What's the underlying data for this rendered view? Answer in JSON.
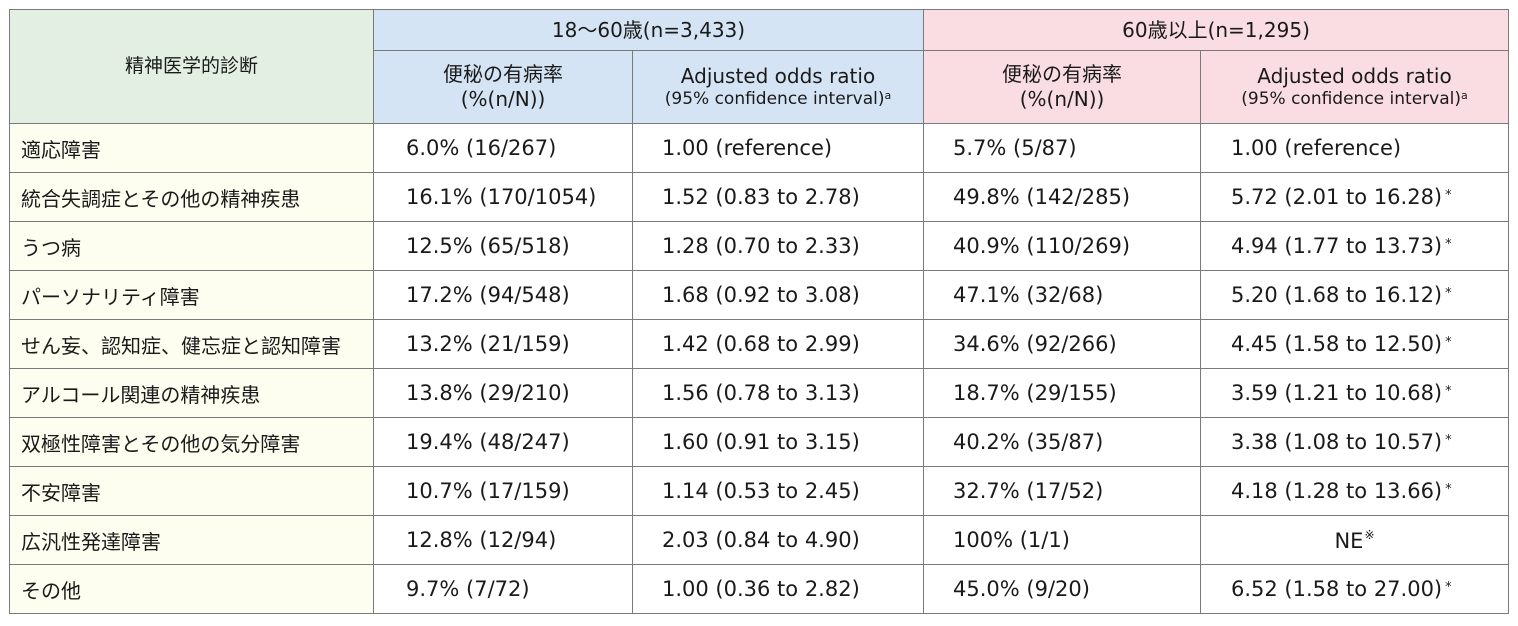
{
  "header": {
    "diagnosis": "精神医学的診断",
    "group_young": "18〜60歳(n=3,433)",
    "group_old": "60歳以上(n=1,295)",
    "prevalence_line1": "便秘の有病率",
    "prevalence_line2": "(%(n/N))",
    "odds_line1": "Adjusted odds ratio",
    "odds_line2": "(95% confidence interval)",
    "odds_sup": "a"
  },
  "rows": [
    {
      "diagnosis": "適応障害",
      "young_prev": "6.0% (16/267)",
      "young_or": "1.00 (reference)",
      "young_star": "",
      "old_prev": "5.7% (5/87)",
      "old_or": "1.00 (reference)",
      "old_star": "",
      "old_note": ""
    },
    {
      "diagnosis": "統合失調症とその他の精神疾患",
      "young_prev": "16.1% (170/1054)",
      "young_or": "1.52 (0.83 to 2.78)",
      "young_star": "",
      "old_prev": "49.8% (142/285)",
      "old_or": "5.72 (2.01 to 16.28)",
      "old_star": "*",
      "old_note": ""
    },
    {
      "diagnosis": "うつ病",
      "young_prev": "12.5% (65/518)",
      "young_or": "1.28 (0.70 to 2.33)",
      "young_star": "",
      "old_prev": "40.9% (110/269)",
      "old_or": "4.94 (1.77 to 13.73)",
      "old_star": "*",
      "old_note": ""
    },
    {
      "diagnosis": "パーソナリティ障害",
      "young_prev": "17.2% (94/548)",
      "young_or": "1.68 (0.92 to 3.08)",
      "young_star": "",
      "old_prev": "47.1% (32/68)",
      "old_or": "5.20 (1.68 to 16.12)",
      "old_star": "*",
      "old_note": ""
    },
    {
      "diagnosis": "せん妄、認知症、健忘症と認知障害",
      "young_prev": "13.2% (21/159)",
      "young_or": "1.42 (0.68 to 2.99)",
      "young_star": "",
      "old_prev": "34.6% (92/266)",
      "old_or": "4.45 (1.58 to 12.50)",
      "old_star": "*",
      "old_note": ""
    },
    {
      "diagnosis": "アルコール関連の精神疾患",
      "young_prev": "13.8% (29/210)",
      "young_or": "1.56 (0.78 to 3.13)",
      "young_star": "",
      "old_prev": "18.7% (29/155)",
      "old_or": "3.59 (1.21 to 10.68)",
      "old_star": "*",
      "old_note": ""
    },
    {
      "diagnosis": "双極性障害とその他の気分障害",
      "young_prev": "19.4% (48/247)",
      "young_or": "1.60 (0.91 to 3.15)",
      "young_star": "",
      "old_prev": "40.2% (35/87)",
      "old_or": "3.38 (1.08 to 10.57)",
      "old_star": "*",
      "old_note": ""
    },
    {
      "diagnosis": "不安障害",
      "young_prev": "10.7% (17/159)",
      "young_or": "1.14 (0.53 to 2.45)",
      "young_star": "",
      "old_prev": "32.7% (17/52)",
      "old_or": "4.18 (1.28 to 13.66)",
      "old_star": "*",
      "old_note": ""
    },
    {
      "diagnosis": "広汎性発達障害",
      "young_prev": "12.8% (12/94)",
      "young_or": "2.03 (0.84 to 4.90)",
      "young_star": "",
      "old_prev": "100% (1/1)",
      "old_or": "NE",
      "old_star": "",
      "old_note": "※"
    },
    {
      "diagnosis": "その他",
      "young_prev": "9.7% (7/72)",
      "young_or": "1.00 (0.36 to 2.82)",
      "young_star": "",
      "old_prev": "45.0% (9/20)",
      "old_or": "6.52 (1.58 to 27.00)",
      "old_star": "*",
      "old_note": ""
    }
  ],
  "colors": {
    "diagnosis_header_bg": "#e2efe2",
    "young_header_bg": "#d5e4f4",
    "old_header_bg": "#f9dde2",
    "diagnosis_cell_bg": "#fdfdf0",
    "border": "#7a7a7a"
  }
}
